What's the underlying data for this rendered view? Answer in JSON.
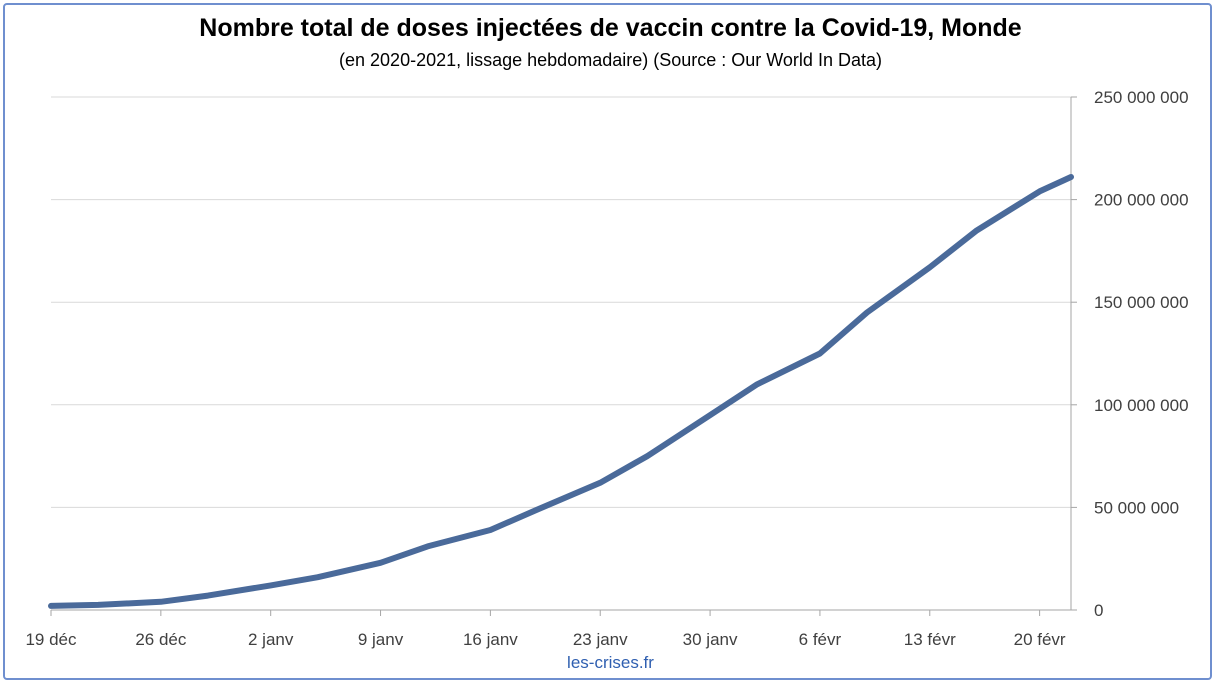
{
  "chart_data": {
    "type": "line",
    "title": "Nombre total de doses injectées de vaccin contre la Covid-19, Monde",
    "subtitle": "(en 2020-2021, lissage hebdomadaire) (Source : Our World In Data)",
    "xlabel": "",
    "ylabel": "",
    "ylim": [
      0,
      250000000
    ],
    "yticks": [
      0,
      50000000,
      100000000,
      150000000,
      200000000,
      250000000
    ],
    "ytick_labels": [
      "0",
      "50 000 000",
      "100 000 000",
      "150 000 000",
      "200 000 000",
      "250 000 000"
    ],
    "y_axis_side": "right",
    "grid": true,
    "xtick_labels": [
      "19 déc",
      "26 déc",
      "2 janv",
      "9 janv",
      "16 janv",
      "23 janv",
      "30 janv",
      "6 févr",
      "13 févr",
      "20 févr"
    ],
    "x_start": "2020-12-19",
    "x_end": "2021-02-22",
    "series": [
      {
        "color": "#4a6a9a",
        "x": [
          "2020-12-19",
          "2020-12-22",
          "2020-12-26",
          "2020-12-29",
          "2021-01-02",
          "2021-01-05",
          "2021-01-09",
          "2021-01-12",
          "2021-01-16",
          "2021-01-19",
          "2021-01-23",
          "2021-01-26",
          "2021-01-30",
          "2021-02-02",
          "2021-02-06",
          "2021-02-09",
          "2021-02-13",
          "2021-02-16",
          "2021-02-20",
          "2021-02-22"
        ],
        "values": [
          2000000,
          2500000,
          4000000,
          7000000,
          12000000,
          16000000,
          23000000,
          31000000,
          39000000,
          49000000,
          62000000,
          75000000,
          95000000,
          110000000,
          125000000,
          145000000,
          167000000,
          185000000,
          204000000,
          211000000
        ]
      }
    ]
  },
  "footer": {
    "source": "les-crises.fr"
  }
}
